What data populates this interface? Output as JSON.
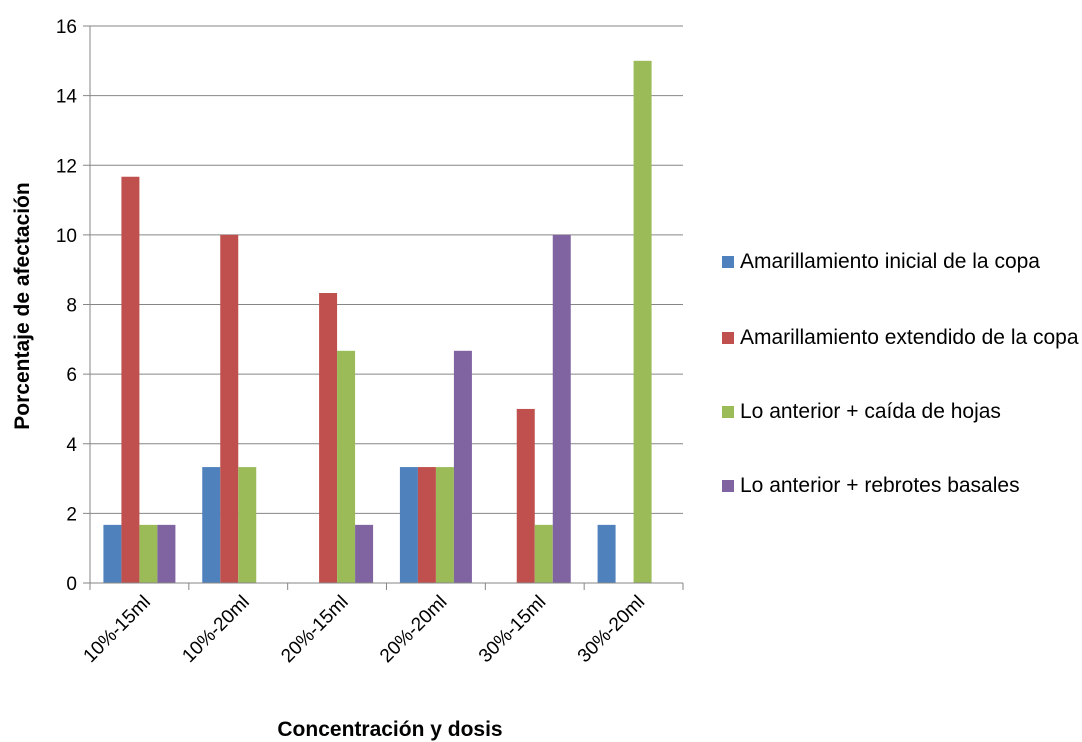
{
  "chart_data": {
    "type": "bar",
    "xlabel": "Concentración y dosis",
    "ylabel": "Porcentaje de afectación",
    "ylim": [
      0,
      16
    ],
    "yticks": [
      0,
      2,
      4,
      6,
      8,
      10,
      12,
      14,
      16
    ],
    "grid": "horizontal",
    "legend_position": "right",
    "categories": [
      "10%-15ml",
      "10%-20ml",
      "20%-15ml",
      "20%-20ml",
      "30%-15ml",
      "30%-20ml"
    ],
    "series": [
      {
        "name": "Amarillamiento inicial de la copa",
        "color": "#4F81BD",
        "values": [
          1.67,
          3.33,
          0,
          3.33,
          0,
          1.67
        ]
      },
      {
        "name": "Amarillamiento extendido de la copa",
        "color": "#C0504D",
        "values": [
          11.67,
          10,
          8.33,
          3.33,
          5,
          0
        ]
      },
      {
        "name": "Lo anterior + caída de hojas",
        "color": "#9BBB59",
        "values": [
          1.67,
          3.33,
          6.67,
          3.33,
          1.67,
          15
        ]
      },
      {
        "name": "Lo anterior + rebrotes basales",
        "color": "#8064A2",
        "values": [
          1.67,
          0,
          1.67,
          6.67,
          10,
          0
        ]
      }
    ]
  }
}
